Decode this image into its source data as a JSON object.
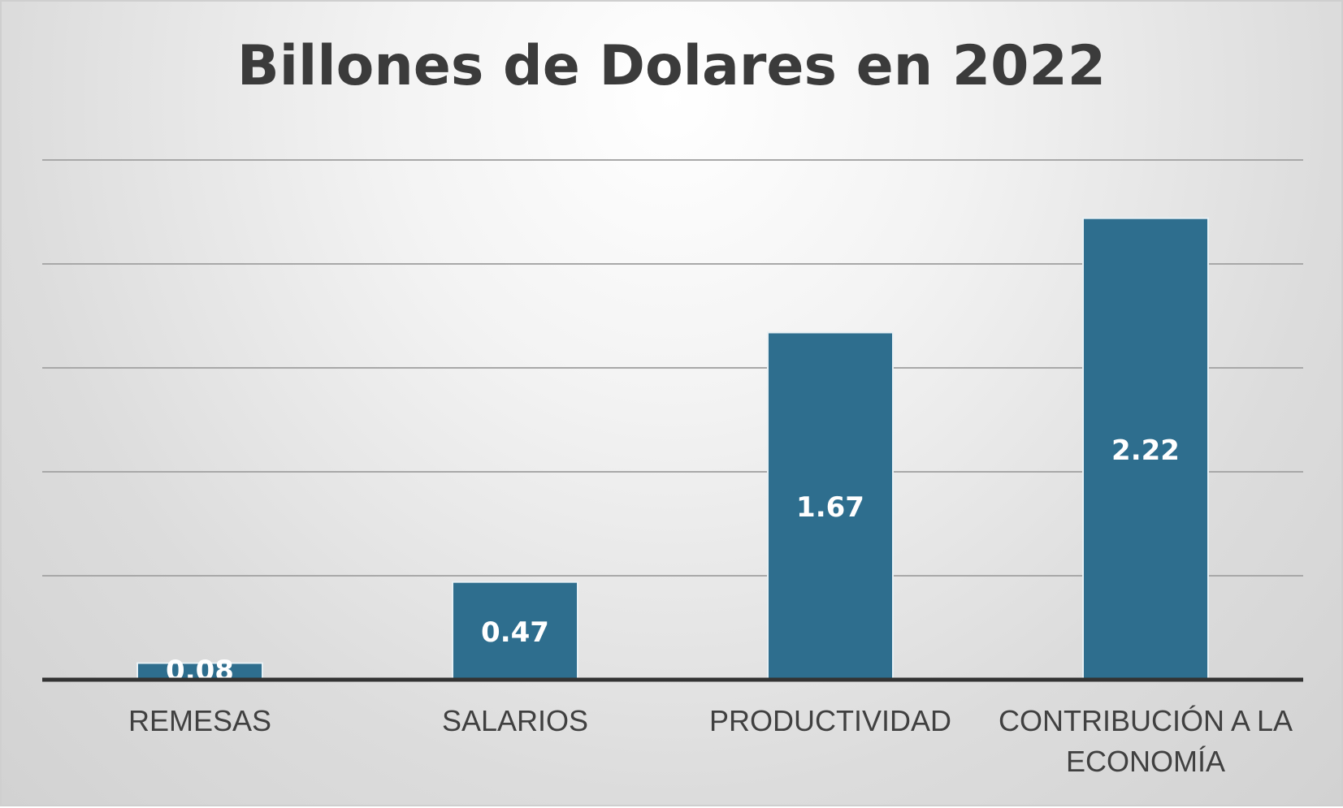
{
  "chart_data": {
    "type": "bar",
    "title": "Billones de Dolares en 2022",
    "xlabel": "",
    "ylabel": "",
    "categories": [
      "REMESAS",
      "SALARIOS",
      "PRODUCTIVIDAD",
      "CONTRIBUCIÓN A LA ECONOMÍA"
    ],
    "category_lines": [
      [
        "REMESAS"
      ],
      [
        "SALARIOS"
      ],
      [
        "PRODUCTIVIDAD"
      ],
      [
        "CONTRIBUCIÓN A LA",
        "ECONOMÍA"
      ]
    ],
    "values": [
      0.08,
      0.47,
      1.67,
      2.22
    ],
    "data_labels": [
      "0.08",
      "0.47",
      "1.67",
      "2.22"
    ],
    "ylim": [
      0,
      2.5
    ],
    "grid": true,
    "legend": "none",
    "colors": {
      "bar": "#2e6e8e",
      "bar_edge": "#e8f0f4",
      "grid": "#a8a8a8",
      "baseline": "#333333",
      "data_label": "#ffffff",
      "tick_label": "#404040"
    }
  }
}
